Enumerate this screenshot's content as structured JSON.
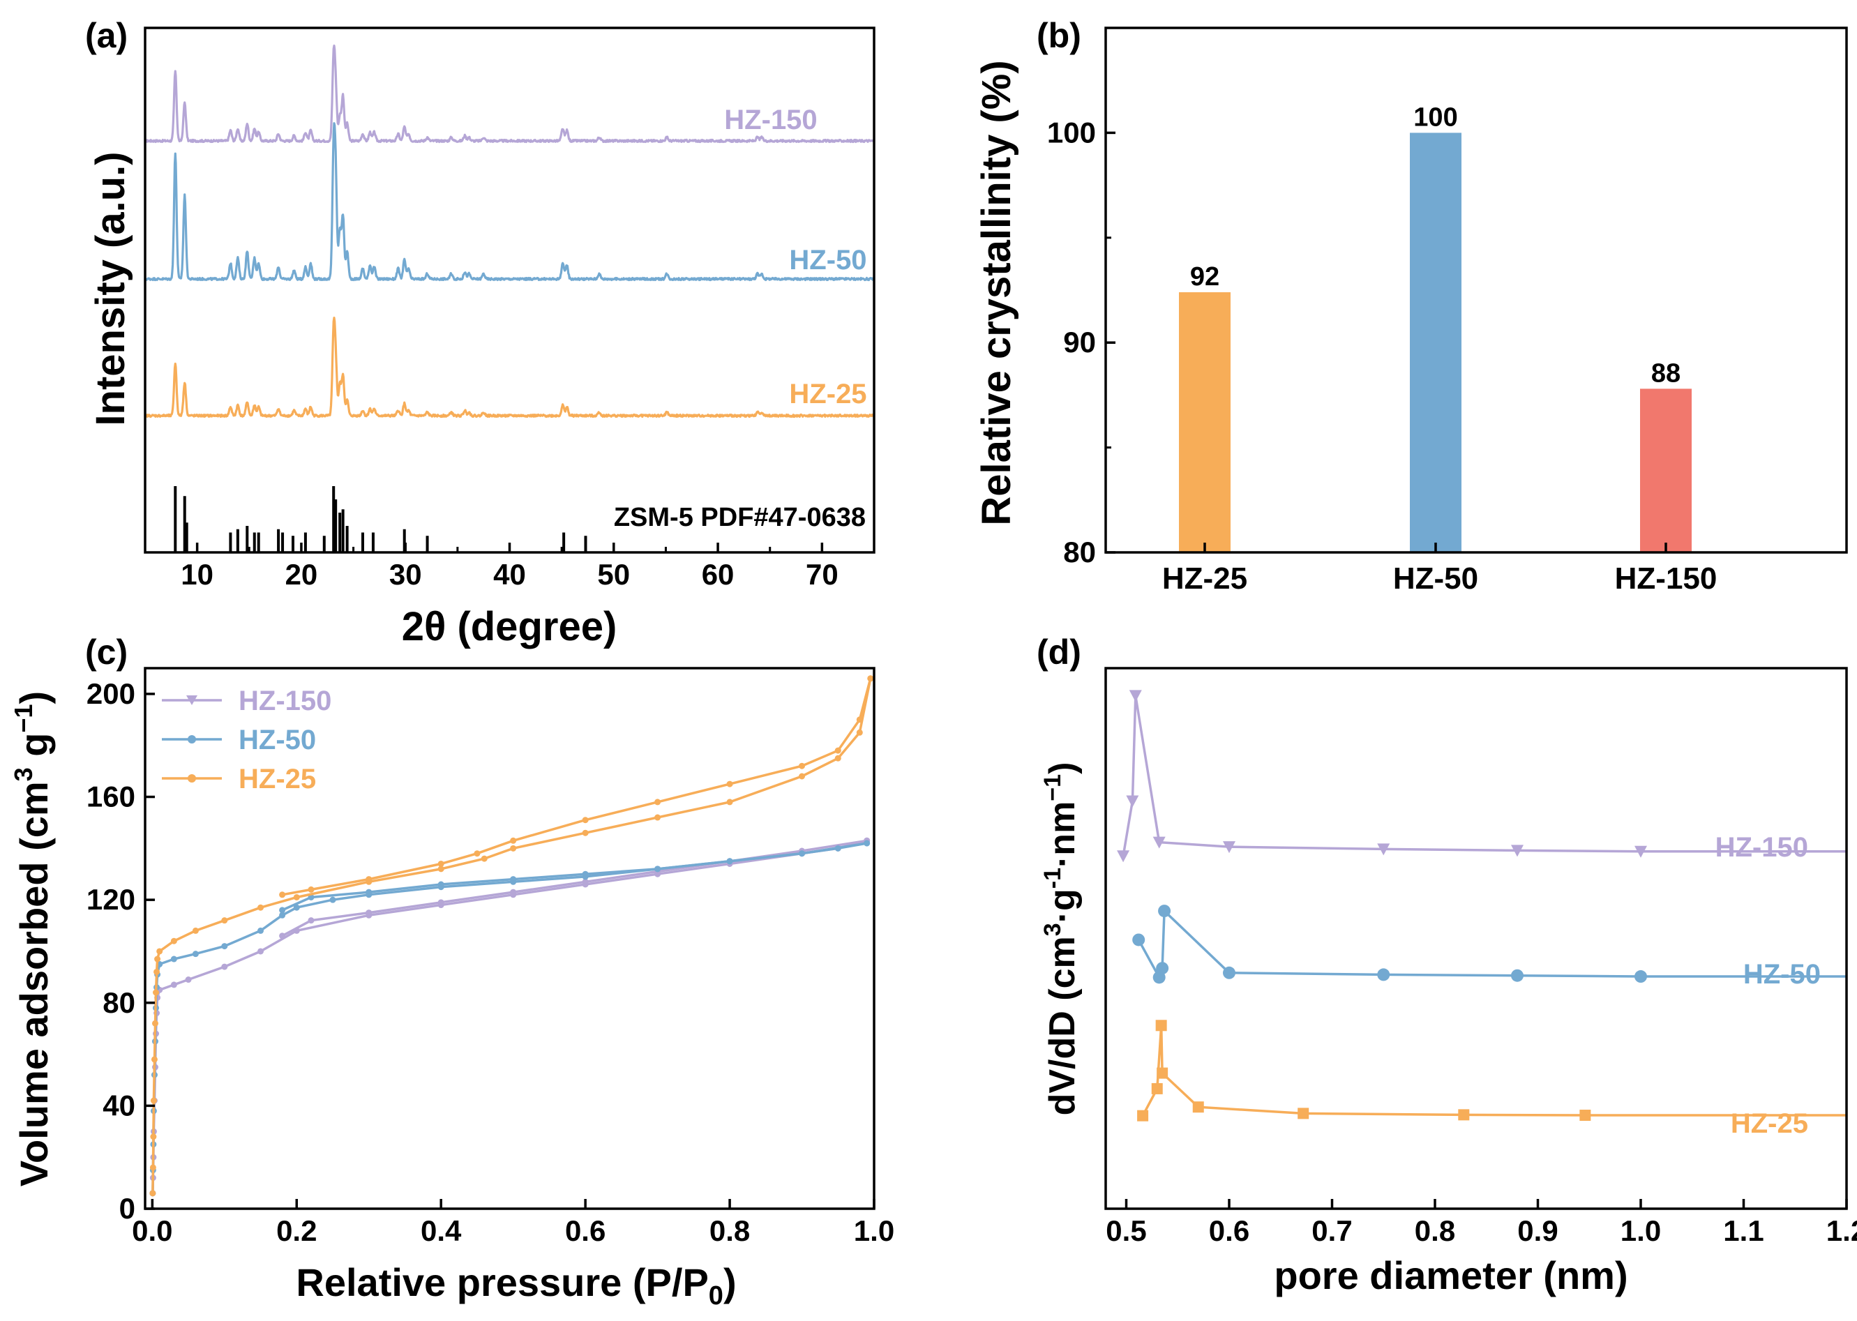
{
  "colors": {
    "hz150": "#b5a6d6",
    "hz50": "#73a9d1",
    "hz25": "#f7ad58",
    "hz150_bar": "#f1786d",
    "ref": "#000000"
  },
  "chart_data": [
    {
      "id": "a",
      "panel_label": "(a)",
      "type": "line",
      "xlabel": "2θ (degree)",
      "ylabel": "Intensity (a.u.)",
      "xlim": [
        5,
        75
      ],
      "x_ticks": [
        10,
        20,
        30,
        40,
        50,
        60,
        70
      ],
      "series_labels": [
        "HZ-150",
        "HZ-50",
        "HZ-25"
      ],
      "reference_label": "ZSM-5 PDF#47-0638",
      "peaks_x": [
        7.9,
        8.8,
        13.2,
        13.9,
        14.8,
        15.5,
        15.9,
        17.8,
        19.3,
        20.4,
        20.9,
        23.1,
        23.3,
        23.7,
        24.0,
        24.4,
        25.9,
        26.6,
        27.0,
        29.3,
        29.9,
        30.3,
        32.1,
        34.4,
        35.7,
        36.1,
        37.5,
        45.1,
        45.5,
        48.6,
        55.1,
        63.8,
        64.2
      ],
      "peaks_series": {
        "HZ-150": [
          0.4,
          0.22,
          0.06,
          0.07,
          0.1,
          0.07,
          0.05,
          0.04,
          0.03,
          0.05,
          0.06,
          0.46,
          0.28,
          0.14,
          0.26,
          0.1,
          0.04,
          0.05,
          0.05,
          0.04,
          0.08,
          0.04,
          0.02,
          0.02,
          0.03,
          0.02,
          0.02,
          0.07,
          0.06,
          0.02,
          0.02,
          0.02,
          0.02
        ],
        "HZ-50": [
          0.72,
          0.48,
          0.09,
          0.12,
          0.16,
          0.12,
          0.09,
          0.07,
          0.05,
          0.07,
          0.09,
          0.7,
          0.55,
          0.28,
          0.36,
          0.16,
          0.06,
          0.08,
          0.07,
          0.06,
          0.11,
          0.06,
          0.03,
          0.03,
          0.04,
          0.03,
          0.03,
          0.09,
          0.08,
          0.03,
          0.03,
          0.03,
          0.03
        ],
        "HZ-25": [
          0.3,
          0.19,
          0.05,
          0.06,
          0.08,
          0.06,
          0.05,
          0.04,
          0.03,
          0.04,
          0.05,
          0.46,
          0.3,
          0.18,
          0.23,
          0.09,
          0.03,
          0.04,
          0.04,
          0.03,
          0.07,
          0.03,
          0.02,
          0.02,
          0.03,
          0.02,
          0.02,
          0.06,
          0.05,
          0.02,
          0.02,
          0.02,
          0.02
        ]
      },
      "reference_lines": [
        {
          "x": 7.9,
          "h": 1.0
        },
        {
          "x": 8.8,
          "h": 0.85
        },
        {
          "x": 9.0,
          "h": 0.45
        },
        {
          "x": 13.2,
          "h": 0.3
        },
        {
          "x": 13.9,
          "h": 0.35
        },
        {
          "x": 14.8,
          "h": 0.4
        },
        {
          "x": 15.5,
          "h": 0.3
        },
        {
          "x": 15.9,
          "h": 0.3
        },
        {
          "x": 17.8,
          "h": 0.35
        },
        {
          "x": 18.2,
          "h": 0.3
        },
        {
          "x": 19.2,
          "h": 0.25
        },
        {
          "x": 20.4,
          "h": 0.3
        },
        {
          "x": 22.2,
          "h": 0.25
        },
        {
          "x": 23.1,
          "h": 1.0
        },
        {
          "x": 23.3,
          "h": 0.8
        },
        {
          "x": 23.7,
          "h": 0.6
        },
        {
          "x": 24.0,
          "h": 0.65
        },
        {
          "x": 24.4,
          "h": 0.4
        },
        {
          "x": 25.9,
          "h": 0.3
        },
        {
          "x": 26.9,
          "h": 0.3
        },
        {
          "x": 29.9,
          "h": 0.35
        },
        {
          "x": 32.1,
          "h": 0.25
        },
        {
          "x": 45.2,
          "h": 0.3
        },
        {
          "x": 47.3,
          "h": 0.25
        }
      ]
    },
    {
      "id": "b",
      "panel_label": "(b)",
      "type": "bar",
      "ylabel": "Relative crystallinity (%)",
      "categories": [
        "HZ-25",
        "HZ-50",
        "HZ-150"
      ],
      "values": [
        92.4,
        100,
        87.8
      ],
      "value_labels": [
        "92",
        "100",
        "88"
      ],
      "ylim": [
        80,
        105
      ],
      "y_ticks": [
        80,
        90,
        100
      ]
    },
    {
      "id": "c",
      "panel_label": "(c)",
      "type": "line",
      "xlabel": "Relative pressure (P/P0)",
      "xlabel_main": "Relative pressure (P/P",
      "xlabel_sub": "0",
      "xlabel_end": ")",
      "ylabel_main": "Volume adsorbed (cm",
      "ylabel_sup1": "3",
      "ylabel_mid": " g",
      "ylabel_sup2": "−1",
      "ylabel_end": ")",
      "xlim": [
        -0.01,
        1.0
      ],
      "ylim": [
        0,
        210
      ],
      "x_ticks": [
        0.0,
        0.2,
        0.4,
        0.6,
        0.8,
        1.0
      ],
      "x_tick_labels": [
        "0.0",
        "0.2",
        "0.4",
        "0.6",
        "0.8",
        "1.0"
      ],
      "y_ticks": [
        0,
        40,
        80,
        120,
        160,
        200
      ],
      "legend": [
        "HZ-150",
        "HZ-50",
        "HZ-25"
      ],
      "series": [
        {
          "name": "HZ-150",
          "adsorption": [
            [
              0.0005,
              6
            ],
            [
              0.001,
              12
            ],
            [
              0.0015,
              20
            ],
            [
              0.002,
              30
            ],
            [
              0.003,
              42
            ],
            [
              0.004,
              55
            ],
            [
              0.005,
              68
            ],
            [
              0.006,
              76
            ],
            [
              0.007,
              82
            ],
            [
              0.01,
              85
            ],
            [
              0.03,
              87
            ],
            [
              0.05,
              89
            ],
            [
              0.1,
              94
            ],
            [
              0.15,
              100
            ],
            [
              0.2,
              108
            ],
            [
              0.3,
              114
            ],
            [
              0.4,
              118
            ],
            [
              0.5,
              122
            ],
            [
              0.6,
              126
            ],
            [
              0.7,
              130
            ],
            [
              0.8,
              134
            ],
            [
              0.9,
              138
            ],
            [
              0.95,
              140
            ],
            [
              0.99,
              143
            ]
          ],
          "desorption": [
            [
              0.99,
              143
            ],
            [
              0.9,
              139
            ],
            [
              0.8,
              135
            ],
            [
              0.7,
              131
            ],
            [
              0.6,
              127
            ],
            [
              0.5,
              123
            ],
            [
              0.4,
              119
            ],
            [
              0.3,
              115
            ],
            [
              0.22,
              112
            ],
            [
              0.18,
              106
            ]
          ]
        },
        {
          "name": "HZ-50",
          "adsorption": [
            [
              0.0005,
              6
            ],
            [
              0.001,
              15
            ],
            [
              0.0015,
              25
            ],
            [
              0.002,
              38
            ],
            [
              0.003,
              52
            ],
            [
              0.004,
              65
            ],
            [
              0.005,
              78
            ],
            [
              0.006,
              86
            ],
            [
              0.007,
              91
            ],
            [
              0.01,
              95
            ],
            [
              0.03,
              97
            ],
            [
              0.06,
              99
            ],
            [
              0.1,
              102
            ],
            [
              0.15,
              108
            ],
            [
              0.18,
              114
            ],
            [
              0.2,
              117
            ],
            [
              0.25,
              120
            ],
            [
              0.3,
              122
            ],
            [
              0.4,
              125
            ],
            [
              0.5,
              127
            ],
            [
              0.6,
              129
            ],
            [
              0.7,
              132
            ],
            [
              0.8,
              135
            ],
            [
              0.9,
              138
            ],
            [
              0.95,
              140
            ],
            [
              0.99,
              142
            ]
          ],
          "desorption": [
            [
              0.99,
              142
            ],
            [
              0.9,
              138
            ],
            [
              0.8,
              135
            ],
            [
              0.7,
              132
            ],
            [
              0.6,
              130
            ],
            [
              0.5,
              128
            ],
            [
              0.4,
              126
            ],
            [
              0.3,
              123
            ],
            [
              0.22,
              121
            ],
            [
              0.18,
              116
            ]
          ]
        },
        {
          "name": "HZ-25",
          "adsorption": [
            [
              0.0005,
              6
            ],
            [
              0.001,
              16
            ],
            [
              0.0015,
              28
            ],
            [
              0.002,
              42
            ],
            [
              0.003,
              58
            ],
            [
              0.004,
              72
            ],
            [
              0.005,
              84
            ],
            [
              0.006,
              92
            ],
            [
              0.007,
              97
            ],
            [
              0.01,
              100
            ],
            [
              0.03,
              104
            ],
            [
              0.06,
              108
            ],
            [
              0.1,
              112
            ],
            [
              0.15,
              117
            ],
            [
              0.2,
              121
            ],
            [
              0.3,
              127
            ],
            [
              0.4,
              132
            ],
            [
              0.46,
              136
            ],
            [
              0.5,
              140
            ],
            [
              0.6,
              146
            ],
            [
              0.7,
              152
            ],
            [
              0.8,
              158
            ],
            [
              0.9,
              168
            ],
            [
              0.95,
              175
            ],
            [
              0.98,
              185
            ],
            [
              0.995,
              206
            ]
          ],
          "desorption": [
            [
              0.995,
              206
            ],
            [
              0.98,
              190
            ],
            [
              0.95,
              178
            ],
            [
              0.9,
              172
            ],
            [
              0.8,
              165
            ],
            [
              0.7,
              158
            ],
            [
              0.6,
              151
            ],
            [
              0.5,
              143
            ],
            [
              0.45,
              138
            ],
            [
              0.4,
              134
            ],
            [
              0.3,
              128
            ],
            [
              0.22,
              124
            ],
            [
              0.18,
              122
            ]
          ]
        }
      ]
    },
    {
      "id": "d",
      "panel_label": "(d)",
      "type": "line",
      "xlabel": "pore diameter (nm)",
      "ylabel_main": "dV/dD (cm",
      "ylabel_sup1": "3",
      "ylabel_mid": "·g",
      "ylabel_sup2": "-1",
      "ylabel_mid2": "·nm",
      "ylabel_sup3": "−1",
      "ylabel_end": ")",
      "xlim": [
        0.48,
        1.2
      ],
      "ylim": [
        -0.15,
        1.03
      ],
      "x_ticks": [
        0.5,
        0.6,
        0.7,
        0.8,
        0.9,
        1.0,
        1.1,
        1.2
      ],
      "x_tick_labels": [
        "0.5",
        "0.6",
        "0.7",
        "0.8",
        "0.9",
        "1.0",
        "1.1",
        "1.2"
      ],
      "series": [
        {
          "name": "HZ-150",
          "marker": "triangle-down",
          "end_x": 1.2,
          "points": [
            [
              0.497,
              0.62
            ],
            [
              0.506,
              0.74
            ],
            [
              0.509,
              0.97
            ],
            [
              0.532,
              0.65
            ],
            [
              0.6,
              0.64
            ],
            [
              0.75,
              0.635
            ],
            [
              0.88,
              0.632
            ],
            [
              1.0,
              0.63
            ]
          ]
        },
        {
          "name": "HZ-50",
          "marker": "circle",
          "end_x": 1.2,
          "points": [
            [
              0.512,
              0.437
            ],
            [
              0.532,
              0.355
            ],
            [
              0.535,
              0.375
            ],
            [
              0.537,
              0.5
            ],
            [
              0.6,
              0.365
            ],
            [
              0.75,
              0.361
            ],
            [
              0.88,
              0.359
            ],
            [
              1.0,
              0.357
            ]
          ]
        },
        {
          "name": "HZ-25",
          "marker": "square",
          "end_x": 1.2,
          "points": [
            [
              0.516,
              0.053
            ],
            [
              0.53,
              0.112
            ],
            [
              0.534,
              0.25
            ],
            [
              0.535,
              0.146
            ],
            [
              0.57,
              0.072
            ],
            [
              0.672,
              0.058
            ],
            [
              0.828,
              0.055
            ],
            [
              0.946,
              0.054
            ]
          ]
        }
      ]
    }
  ]
}
